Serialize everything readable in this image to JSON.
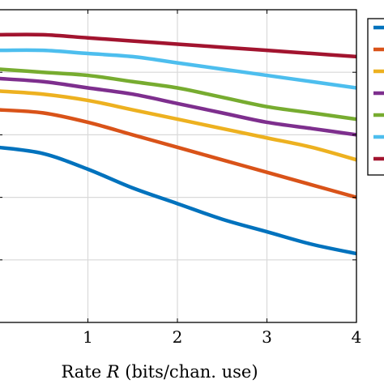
{
  "chart_data": {
    "type": "line",
    "xlabel": "Rate R (bits/chan. use)",
    "xlabel_prefix": "Rate ",
    "xlabel_var": "R",
    "xlabel_suffix": " (bits/chan. use)",
    "ylabel": "",
    "title": "",
    "xlim": [
      0,
      4
    ],
    "ylim": [
      0,
      1
    ],
    "xticks": [
      1,
      2,
      3,
      4
    ],
    "xtick_labels": [
      "1",
      "2",
      "3",
      "4"
    ],
    "yticks": [
      0.2,
      0.4,
      0.6,
      0.8
    ],
    "grid": true,
    "legend": "right, partially cropped, labels not visible",
    "series": [
      {
        "color": "#0072bd",
        "x": [
          0,
          0.5,
          1,
          1.5,
          2,
          2.5,
          3,
          3.5,
          4
        ],
        "y": [
          0.56,
          0.54,
          0.49,
          0.43,
          0.38,
          0.33,
          0.29,
          0.25,
          0.22
        ]
      },
      {
        "color": "#d95319",
        "x": [
          0,
          0.5,
          1,
          1.5,
          2,
          2.5,
          3,
          3.5,
          4
        ],
        "y": [
          0.68,
          0.67,
          0.64,
          0.6,
          0.56,
          0.52,
          0.48,
          0.44,
          0.4
        ]
      },
      {
        "color": "#edb120",
        "x": [
          0,
          0.5,
          1,
          1.5,
          2,
          2.5,
          3,
          3.5,
          4
        ],
        "y": [
          0.74,
          0.73,
          0.71,
          0.68,
          0.65,
          0.62,
          0.59,
          0.56,
          0.52
        ]
      },
      {
        "color": "#7e2f8e",
        "x": [
          0,
          0.5,
          1,
          1.5,
          2,
          2.5,
          3,
          3.5,
          4
        ],
        "y": [
          0.78,
          0.77,
          0.75,
          0.73,
          0.7,
          0.67,
          0.64,
          0.62,
          0.6
        ]
      },
      {
        "color": "#77ac30",
        "x": [
          0,
          0.5,
          1,
          1.5,
          2,
          2.5,
          3,
          3.5,
          4
        ],
        "y": [
          0.81,
          0.8,
          0.79,
          0.77,
          0.75,
          0.72,
          0.69,
          0.67,
          0.65
        ]
      },
      {
        "color": "#4dbeee",
        "x": [
          0,
          0.5,
          1,
          1.5,
          2,
          2.5,
          3,
          3.5,
          4
        ],
        "y": [
          0.87,
          0.87,
          0.86,
          0.85,
          0.83,
          0.81,
          0.79,
          0.77,
          0.75
        ]
      },
      {
        "color": "#a2142f",
        "x": [
          0,
          0.5,
          1,
          1.5,
          2,
          2.5,
          3,
          3.5,
          4
        ],
        "y": [
          0.92,
          0.92,
          0.91,
          0.9,
          0.89,
          0.88,
          0.87,
          0.86,
          0.85
        ]
      }
    ]
  }
}
